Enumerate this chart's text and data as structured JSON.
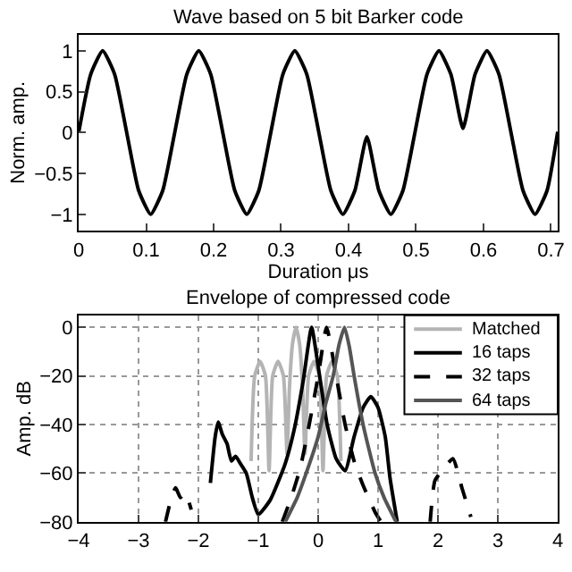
{
  "chart_data": [
    {
      "type": "line",
      "title": "Wave based on 5 bit Barker code",
      "xlabel": "Duration μs",
      "ylabel": "Norm. amp.",
      "x": [
        0,
        0.0178,
        0.0356,
        0.0534,
        0.0712,
        0.089,
        0.1068,
        0.1246,
        0.1424,
        0.1602,
        0.178,
        0.1958,
        0.2136,
        0.2314,
        0.2492,
        0.267,
        0.2848,
        0.3026,
        0.3204,
        0.3382,
        0.356,
        0.3738,
        0.3916,
        0.4094,
        0.4272,
        0.445,
        0.4628,
        0.4806,
        0.4984,
        0.5162,
        0.534,
        0.5518,
        0.5696,
        0.5874,
        0.6052,
        0.623,
        0.6408,
        0.6586,
        0.6764,
        0.6942,
        0.71
      ],
      "series": [
        {
          "color": "#000000",
          "values": [
            0,
            0.71,
            1,
            0.71,
            0,
            -0.71,
            -1,
            -0.71,
            0,
            0.71,
            1,
            0.71,
            0,
            -0.71,
            -1,
            -0.71,
            0,
            0.71,
            1,
            0.71,
            0,
            -0.71,
            -1,
            -0.71,
            -0.05,
            -0.71,
            -1,
            -0.71,
            0,
            0.71,
            1,
            0.71,
            0.05,
            0.71,
            1,
            0.71,
            0,
            -0.71,
            -1,
            -0.71,
            0.01
          ]
        }
      ],
      "xlim": [
        0,
        0.71
      ],
      "xticks": [
        0,
        0.1,
        0.2,
        0.3,
        0.4,
        0.5,
        0.6,
        0.7
      ],
      "ylim": [
        -1.2,
        1.2
      ],
      "yticks": [
        -1,
        -0.5,
        0,
        0.5,
        1
      ],
      "line_style": "solid",
      "marker": "none"
    },
    {
      "type": "line",
      "title": "Envelope of compressed code",
      "ylabel": "Amp. dB",
      "series": [
        {
          "name": "Matched",
          "color": "#b4b4b4",
          "x": [
            -1.12,
            -1.06,
            -0.97,
            -0.88,
            -0.82,
            -0.76,
            -0.67,
            -0.58,
            -0.52,
            -0.48,
            -0.43,
            -0.37,
            -0.31,
            -0.26,
            -0.22,
            -0.16,
            -0.07,
            0.02,
            0.08,
            0.14,
            0.23,
            0.32,
            0.38
          ],
          "values": [
            -55,
            -20,
            -14,
            -20,
            -59,
            -20,
            -14,
            -20,
            -52,
            -25,
            -7,
            0,
            -7,
            -25,
            -52,
            -20,
            -14,
            -20,
            -59,
            -20,
            -14,
            -20,
            -55
          ]
        },
        {
          "name": "16 taps",
          "color": "#000000",
          "x": [
            -1.8,
            -1.72,
            -1.67,
            -1.6,
            -1.52,
            -1.45,
            -1.38,
            -1.3,
            -1.2,
            -1.1,
            -1.0,
            -0.8,
            -0.55,
            -0.4,
            -0.25,
            -0.11,
            0.0,
            0.15,
            0.3,
            0.45,
            0.6,
            0.75,
            0.88,
            1.0,
            1.12,
            1.2,
            1.32
          ],
          "values": [
            -64,
            -45,
            -39,
            -44,
            -48,
            -55,
            -53,
            -56,
            -60,
            -70,
            -77,
            -71,
            -56,
            -42,
            -22,
            0,
            -16,
            -40,
            -54,
            -59,
            -45,
            -33,
            -28.5,
            -33,
            -45,
            -62,
            -80
          ]
        },
        {
          "name": "32 taps",
          "color": "#000000",
          "line_style": "dashed",
          "x": [
            -2.55,
            -2.45,
            -2.38,
            -2.3,
            -2.22,
            -2.12,
            null,
            -0.6,
            -0.45,
            -0.3,
            -0.15,
            0.0,
            0.14,
            0.3,
            0.45,
            0.6,
            0.75,
            0.95,
            1.05,
            null,
            1.87,
            1.95,
            2.1,
            2.25,
            2.4,
            2.55
          ],
          "values": [
            -80,
            -70,
            -66,
            -70,
            -68,
            -75,
            null,
            -80,
            -70,
            -58,
            -40,
            -20,
            0,
            -20,
            -40,
            -55,
            -65,
            -76,
            -80,
            null,
            -80,
            -63,
            -58,
            -54,
            -66,
            -78
          ]
        },
        {
          "name": "64 taps",
          "color": "#555555",
          "x": [
            -0.55,
            -0.35,
            -0.2,
            0.0,
            0.12,
            0.25,
            0.35,
            0.44,
            0.52,
            0.6,
            0.75,
            0.95,
            1.1,
            1.3
          ],
          "values": [
            -80,
            -70,
            -60,
            -45,
            -32,
            -20,
            -7,
            0,
            -8,
            -20,
            -40,
            -60,
            -70,
            -80
          ]
        }
      ],
      "xlim": [
        -4,
        4
      ],
      "xticks": [
        -4,
        -3,
        -2,
        -1,
        0,
        1,
        2,
        3,
        4
      ],
      "ylim": [
        -80,
        5
      ],
      "yticks": [
        -80,
        -60,
        -40,
        -20,
        0
      ],
      "grid": true,
      "legend": "top right",
      "line_style": "solid",
      "marker": "none"
    }
  ]
}
